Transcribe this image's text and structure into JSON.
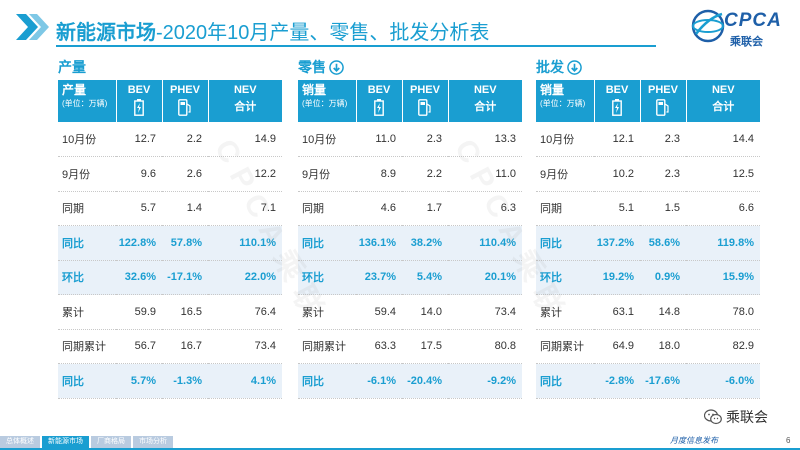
{
  "header": {
    "title_strong": "新能源市场",
    "title_rest": "-2020年10月产量、零售、批发分析表"
  },
  "logo": {
    "text": "CPCA",
    "sub": "乘联会"
  },
  "column_headers": {
    "first_label": "产量",
    "sales_label": "销量",
    "unit": "(单位：万辆)",
    "bev": "BEV",
    "phev": "PHEV",
    "nev": "NEV",
    "total": "合计"
  },
  "sections": [
    {
      "title": "产量",
      "rows": [
        {
          "label": "10月份",
          "bev": "12.7",
          "phev": "2.2",
          "nev": "14.9"
        },
        {
          "label": "9月份",
          "bev": "9.6",
          "phev": "2.6",
          "nev": "12.2"
        },
        {
          "label": "同期",
          "bev": "5.7",
          "phev": "1.4",
          "nev": "7.1"
        },
        {
          "label": "同比",
          "bev": "122.8%",
          "phev": "57.8%",
          "nev": "110.1%"
        },
        {
          "label": "环比",
          "bev": "32.6%",
          "phev": "-17.1%",
          "nev": "22.0%"
        },
        {
          "label": "累计",
          "bev": "59.9",
          "phev": "16.5",
          "nev": "76.4"
        },
        {
          "label": "同期累计",
          "bev": "56.7",
          "phev": "16.7",
          "nev": "73.4"
        },
        {
          "label": "同比",
          "bev": "5.7%",
          "phev": "-1.3%",
          "nev": "4.1%"
        }
      ]
    },
    {
      "title": "零售",
      "rows": [
        {
          "label": "10月份",
          "bev": "11.0",
          "phev": "2.3",
          "nev": "13.3"
        },
        {
          "label": "9月份",
          "bev": "8.9",
          "phev": "2.2",
          "nev": "11.0"
        },
        {
          "label": "同期",
          "bev": "4.6",
          "phev": "1.7",
          "nev": "6.3"
        },
        {
          "label": "同比",
          "bev": "136.1%",
          "phev": "38.2%",
          "nev": "110.4%"
        },
        {
          "label": "环比",
          "bev": "23.7%",
          "phev": "5.4%",
          "nev": "20.1%"
        },
        {
          "label": "累计",
          "bev": "59.4",
          "phev": "14.0",
          "nev": "73.4"
        },
        {
          "label": "同期累计",
          "bev": "63.3",
          "phev": "17.5",
          "nev": "80.8"
        },
        {
          "label": "同比",
          "bev": "-6.1%",
          "phev": "-20.4%",
          "nev": "-9.2%"
        }
      ]
    },
    {
      "title": "批发",
      "rows": [
        {
          "label": "10月份",
          "bev": "12.1",
          "phev": "2.3",
          "nev": "14.4"
        },
        {
          "label": "9月份",
          "bev": "10.2",
          "phev": "2.3",
          "nev": "12.5"
        },
        {
          "label": "同期",
          "bev": "5.1",
          "phev": "1.5",
          "nev": "6.6"
        },
        {
          "label": "同比",
          "bev": "137.2%",
          "phev": "58.6%",
          "nev": "119.8%"
        },
        {
          "label": "环比",
          "bev": "19.2%",
          "phev": "0.9%",
          "nev": "15.9%"
        },
        {
          "label": "累计",
          "bev": "63.1",
          "phev": "14.8",
          "nev": "78.0"
        },
        {
          "label": "同期累计",
          "bev": "64.9",
          "phev": "18.0",
          "nev": "82.9"
        },
        {
          "label": "同比",
          "bev": "-2.8%",
          "phev": "-17.6%",
          "nev": "-6.0%"
        }
      ]
    }
  ],
  "footer": {
    "tabs": [
      "总体概述",
      "新能源市场",
      "厂商格局",
      "市场分析"
    ],
    "slogan": "月度信息发布",
    "page_number": "6"
  },
  "wechat": {
    "label": "乘联会"
  },
  "colors": {
    "accent": "#1a9ed1",
    "highlight_row": "#e9f1f9",
    "brand": "#1e5fa8"
  }
}
